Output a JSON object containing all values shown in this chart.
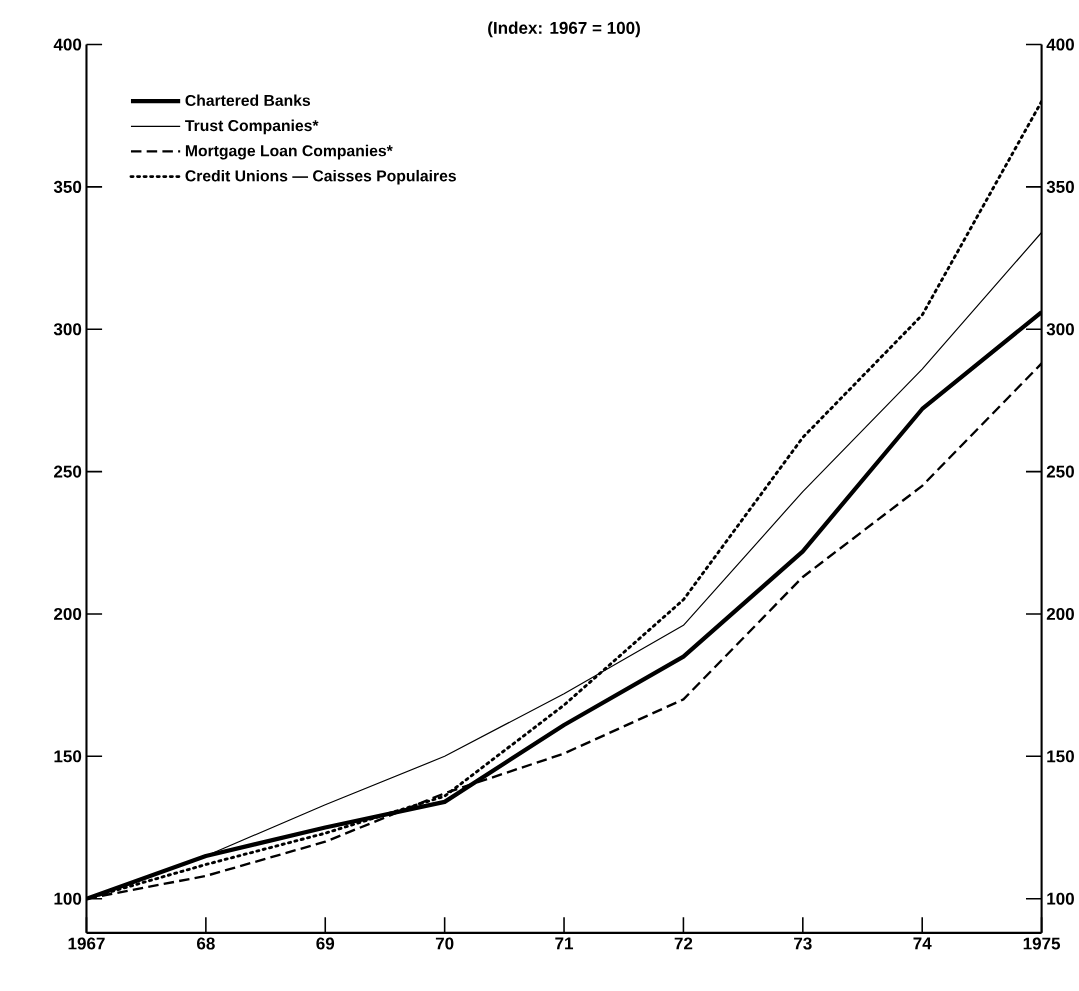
{
  "chart_data": {
    "type": "line",
    "title": "(Index: 1967 = 100)",
    "x": [
      1967,
      1968,
      1969,
      1970,
      1971,
      1972,
      1973,
      1974,
      1975
    ],
    "series": [
      {
        "name": "Chartered Banks",
        "color": "#000000",
        "line_style": "solid",
        "values": [
          100,
          115,
          125,
          134,
          161,
          185,
          222,
          272,
          306
        ]
      },
      {
        "name": "Trust Companies*",
        "color": "#000000",
        "line_style": "solid",
        "values": [
          100,
          115,
          133,
          150,
          172,
          196,
          243,
          286,
          334
        ]
      },
      {
        "name": "Mortgage Loan Companies*",
        "color": "#000000",
        "line_style": "dashed",
        "values": [
          100,
          108,
          120,
          137,
          151,
          170,
          213,
          245,
          288
        ]
      },
      {
        "name": "Credit Unions — Caisses Populaires",
        "color": "#000000",
        "line_style": "dotted",
        "values": [
          100,
          112,
          123,
          136,
          168,
          205,
          262,
          305,
          380
        ]
      }
    ],
    "xlim": [
      1967,
      1975
    ],
    "xticks": [
      {
        "value": 1967,
        "label": "1967"
      },
      {
        "value": 1968,
        "label": "68"
      },
      {
        "value": 1969,
        "label": "69"
      },
      {
        "value": 1970,
        "label": "70"
      },
      {
        "value": 1971,
        "label": "71"
      },
      {
        "value": 1972,
        "label": "72"
      },
      {
        "value": 1973,
        "label": "73"
      },
      {
        "value": 1974,
        "label": "74"
      },
      {
        "value": 1975,
        "label": "1975"
      }
    ],
    "ylim": [
      88,
      400
    ],
    "yticks": [
      100,
      150,
      200,
      250,
      300,
      350,
      400
    ],
    "y2lim": [
      88,
      400
    ],
    "y2ticks": [
      100,
      150,
      200,
      250,
      300,
      350,
      400
    ],
    "legend": "top left",
    "grid": false,
    "marker": "none"
  }
}
